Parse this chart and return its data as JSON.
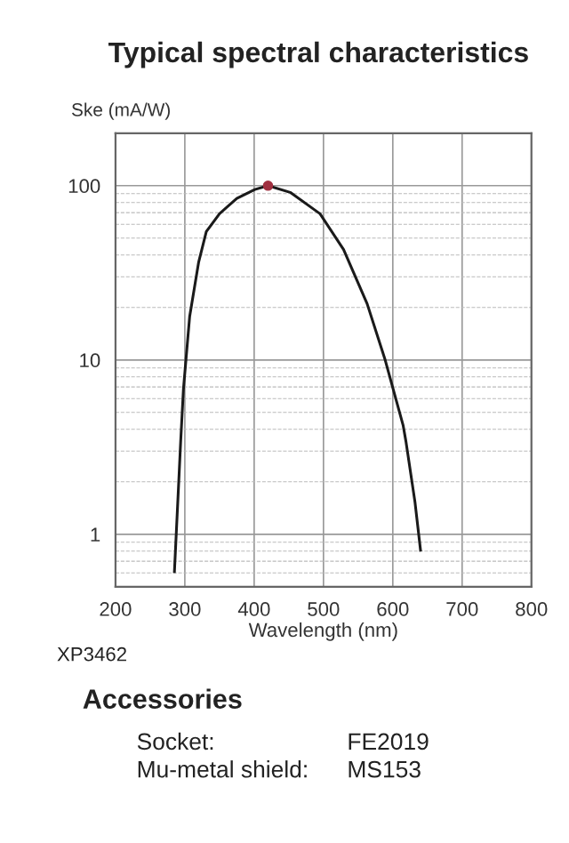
{
  "chart_data": {
    "type": "line",
    "title": "Typical spectral characteristics",
    "xlabel": "Wavelength (nm)",
    "ylabel": "Ske (mA/W)",
    "log": "y",
    "grid": true,
    "xlim": [
      200,
      800
    ],
    "xticks": [
      200,
      300,
      400,
      500,
      600,
      700,
      800
    ],
    "ylim": [
      0.5,
      200
    ],
    "yticks": [
      1,
      10,
      100
    ],
    "series": [
      {
        "color": "#1a1a1a",
        "x": [
          285,
          294,
          298,
          307,
          320,
          331,
          350,
          375,
          401,
          420,
          452,
          495,
          529,
          563,
          589,
          615,
          619,
          632,
          640
        ],
        "values": [
          0.61,
          3.4,
          6.8,
          17.8,
          36.5,
          54.5,
          69,
          84.5,
          95,
          100,
          91.5,
          69,
          43,
          21,
          10,
          4.2,
          3.4,
          1.53,
          0.81
        ]
      },
      {
        "type": "scatter",
        "color": "#a03040",
        "marker": "circle",
        "x": [
          420
        ],
        "values": [
          100
        ]
      }
    ],
    "annotations": [
      "XP3462",
      "Accessories",
      "Socket:",
      "FE2019",
      "Mu-metal shield:",
      "MS153"
    ]
  }
}
